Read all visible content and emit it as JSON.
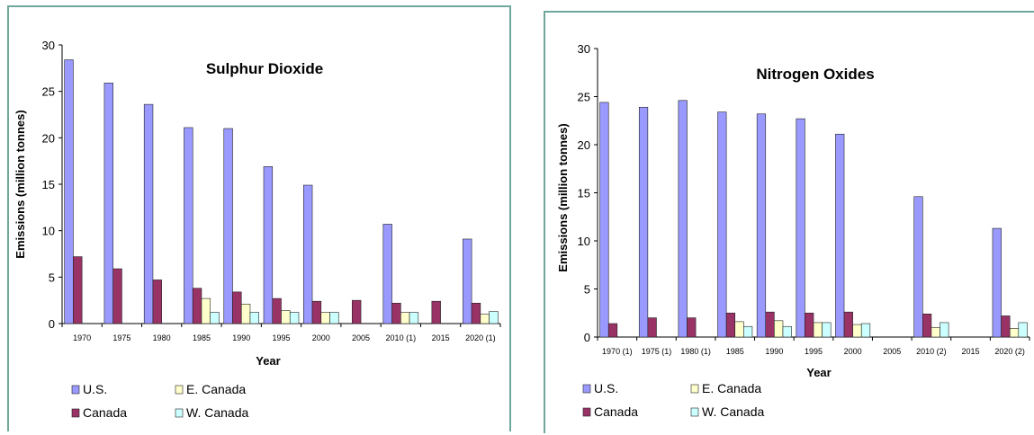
{
  "colors": {
    "us": "#9999ff",
    "canada": "#993366",
    "east": "#ffffcc",
    "west": "#ccffff",
    "frame": "#6fa79a"
  },
  "chart_data": [
    {
      "type": "bar",
      "title": "Sulphur Dioxide",
      "xlabel": "Year",
      "ylabel": "Emissions (million tonnes)",
      "ylim": [
        0,
        30
      ],
      "yticks": [
        0,
        5,
        10,
        15,
        20,
        25,
        30
      ],
      "categories": [
        "1970",
        "1975",
        "1980",
        "1985",
        "1990",
        "1995",
        "2000",
        "2005",
        "2010 (1)",
        "2015",
        "2020 (1)"
      ],
      "series": [
        {
          "name": "U.S.",
          "values": [
            28.4,
            25.9,
            23.6,
            21.1,
            21.0,
            16.9,
            14.9,
            null,
            10.7,
            null,
            9.1
          ]
        },
        {
          "name": "Canada",
          "values": [
            7.2,
            5.9,
            4.7,
            3.8,
            3.4,
            2.7,
            2.4,
            2.5,
            2.2,
            2.4,
            2.2
          ]
        },
        {
          "name": "E. Canada",
          "values": [
            null,
            null,
            null,
            2.7,
            2.1,
            1.4,
            1.2,
            null,
            1.2,
            null,
            1.0
          ]
        },
        {
          "name": "W. Canada",
          "values": [
            null,
            null,
            null,
            1.2,
            1.2,
            1.2,
            1.2,
            null,
            1.2,
            null,
            1.3
          ]
        }
      ],
      "legend": "bottom",
      "grid": false
    },
    {
      "type": "bar",
      "title": "Nitrogen Oxides",
      "xlabel": "Year",
      "ylabel": "Emissions (million tonnes)",
      "ylim": [
        0,
        30
      ],
      "yticks": [
        0,
        5,
        10,
        15,
        20,
        25,
        30
      ],
      "categories": [
        "1970 (1)",
        "1975 (1)",
        "1980 (1)",
        "1985",
        "1990",
        "1995",
        "2000",
        "2005",
        "2010 (2)",
        "2015",
        "2020 (2)"
      ],
      "series": [
        {
          "name": "U.S.",
          "values": [
            24.4,
            23.9,
            24.6,
            23.4,
            23.2,
            22.7,
            21.1,
            null,
            14.6,
            null,
            11.3
          ]
        },
        {
          "name": "Canada",
          "values": [
            1.4,
            2.0,
            2.0,
            2.5,
            2.6,
            2.5,
            2.6,
            null,
            2.4,
            null,
            2.2
          ]
        },
        {
          "name": "E. Canada",
          "values": [
            null,
            null,
            null,
            1.6,
            1.7,
            1.5,
            1.3,
            null,
            1.0,
            null,
            0.9
          ]
        },
        {
          "name": "W. Canada",
          "values": [
            null,
            null,
            null,
            1.1,
            1.1,
            1.5,
            1.4,
            null,
            1.5,
            null,
            1.5
          ]
        }
      ],
      "legend": "bottom",
      "grid": false
    }
  ]
}
